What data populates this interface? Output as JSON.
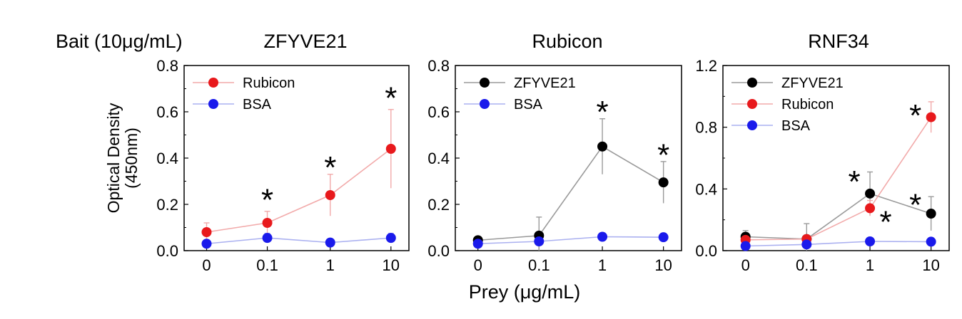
{
  "figure": {
    "bait_label": "Bait (10μg/mL)",
    "ylabel_line1": "Optical Density",
    "ylabel_line2": "(450nm)",
    "xlabel": "Prey (μg/mL)"
  },
  "colors": {
    "red": "#e8191c",
    "blue": "#1a1aeb",
    "black": "#000000",
    "red_line": "#f2aaaa",
    "blue_line": "#aab0f0",
    "black_line": "#9a9a9a"
  },
  "chart_data": [
    {
      "type": "line",
      "title": "ZFYVE21",
      "categories": [
        "0",
        "0.1",
        "1",
        "10"
      ],
      "ylim": [
        0,
        0.8
      ],
      "yticks": [
        "0.0",
        "0.2",
        "0.4",
        "0.6",
        "0.8"
      ],
      "xlabel": "Prey (μg/mL)",
      "ylabel": "Optical Density (450nm)",
      "legend_position": "top-left",
      "series": [
        {
          "name": "Rubicon",
          "color": "red",
          "values": [
            0.08,
            0.12,
            0.24,
            0.44
          ],
          "errors": [
            0.04,
            0.05,
            0.09,
            0.17
          ]
        },
        {
          "name": "BSA",
          "color": "blue",
          "values": [
            0.03,
            0.055,
            0.035,
            0.055
          ],
          "errors": [
            0.01,
            0.02,
            0.01,
            0.02
          ]
        }
      ],
      "annotations": [
        {
          "text": "*",
          "category": "0.1",
          "y": 0.235
        },
        {
          "text": "*",
          "category": "1",
          "y": 0.375
        },
        {
          "text": "*",
          "category": "10",
          "y": 0.675
        }
      ]
    },
    {
      "type": "line",
      "title": "Rubicon",
      "categories": [
        "0",
        "0.1",
        "1",
        "10"
      ],
      "ylim": [
        0,
        0.8
      ],
      "yticks": [
        "0.0",
        "0.2",
        "0.4",
        "0.6",
        "0.8"
      ],
      "xlabel": "Prey (μg/mL)",
      "ylabel": "",
      "legend_position": "top-left",
      "series": [
        {
          "name": "ZFYVE21",
          "color": "black",
          "values": [
            0.045,
            0.065,
            0.45,
            0.295
          ],
          "errors": [
            0.01,
            0.08,
            0.12,
            0.09
          ]
        },
        {
          "name": "BSA",
          "color": "blue",
          "values": [
            0.03,
            0.04,
            0.06,
            0.058
          ],
          "errors": [
            0.01,
            0.01,
            0.01,
            0.01
          ]
        }
      ],
      "annotations": [
        {
          "text": "*",
          "category": "1",
          "y": 0.615
        },
        {
          "text": "*",
          "category": "10",
          "y": 0.43
        }
      ]
    },
    {
      "type": "line",
      "title": "RNF34",
      "categories": [
        "0",
        "0.1",
        "1",
        "10"
      ],
      "ylim": [
        0,
        1.2
      ],
      "yticks": [
        "0.0",
        "0.4",
        "0.8",
        "1.2"
      ],
      "xlabel": "Prey (μg/mL)",
      "ylabel": "",
      "legend_position": "top-left",
      "series": [
        {
          "name": "ZFYVE21",
          "color": "black",
          "values": [
            0.09,
            0.075,
            0.37,
            0.24
          ],
          "errors": [
            0.04,
            0.1,
            0.14,
            0.11
          ]
        },
        {
          "name": "Rubicon",
          "color": "red",
          "values": [
            0.07,
            0.075,
            0.275,
            0.865
          ],
          "errors": [
            0.02,
            0.02,
            0.05,
            0.1
          ]
        },
        {
          "name": "BSA",
          "color": "blue",
          "values": [
            0.03,
            0.04,
            0.06,
            0.058
          ],
          "errors": [
            0.01,
            0.01,
            0.01,
            0.01
          ]
        }
      ],
      "annotations": [
        {
          "text": "*",
          "category": "1",
          "y": 0.47,
          "offset": -1
        },
        {
          "text": "*",
          "category": "1",
          "y": 0.21,
          "offset": 1
        },
        {
          "text": "*",
          "category": "10",
          "y": 0.9,
          "offset": -1
        },
        {
          "text": "*",
          "category": "10",
          "y": 0.32,
          "offset": -1
        }
      ]
    }
  ]
}
